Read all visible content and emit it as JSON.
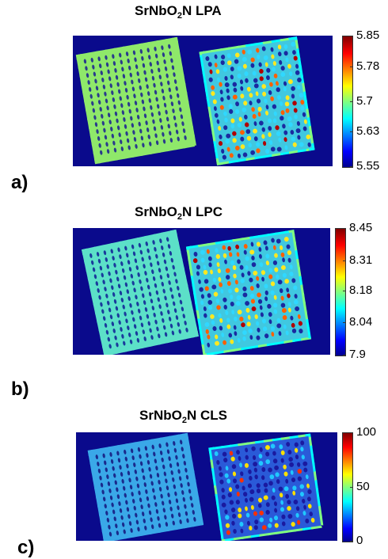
{
  "panels": [
    {
      "label": "a)",
      "title": {
        "prefix": "SrNbO",
        "sub": "2",
        "suffix": "N LPA"
      },
      "colorbar": {
        "min": 5.55,
        "max": 5.85,
        "ticks": [
          "5.85",
          "5.78",
          "5.7",
          "5.63",
          "5.55"
        ]
      },
      "left_cube_color": "#8fe86a",
      "left_dot_color": "#2a3a8c"
    },
    {
      "label": "b)",
      "title": {
        "prefix": "SrNbO",
        "sub": "2",
        "suffix": "N LPC"
      },
      "colorbar": {
        "min": 7.9,
        "max": 8.45,
        "ticks": [
          "8.45",
          "8.31",
          "8.18",
          "8.04",
          "7.9"
        ]
      },
      "left_cube_color": "#5ce0c8",
      "left_dot_color": "#1a3a9c"
    },
    {
      "label": "c)",
      "title": {
        "prefix": "SrNbO",
        "sub": "2",
        "suffix": "N CLS"
      },
      "colorbar": {
        "min": 0,
        "max": 100,
        "ticks": [
          "100",
          "50",
          "0"
        ]
      },
      "left_cube_color": "#3aa8e8",
      "left_dot_color": "#1a2a8c"
    }
  ],
  "colors": {
    "background": "#0a0a8c"
  }
}
